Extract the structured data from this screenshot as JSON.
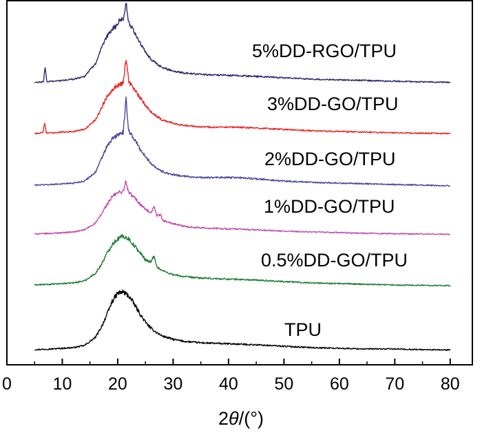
{
  "chart_data": {
    "type": "line",
    "title": "",
    "xlabel_prefix": "2",
    "xlabel_symbol": "θ",
    "xlabel_suffix": "/(°)",
    "ylabel": "",
    "xlim": [
      0,
      84
    ],
    "x_ticks": [
      0,
      10,
      20,
      30,
      40,
      50,
      60,
      70,
      80
    ],
    "x_tick_labels": [
      "0",
      "10",
      "20",
      "30",
      "40",
      "50",
      "60",
      "70",
      "80"
    ],
    "y_axis": "arbitrary intensity, curves offset vertically, no tick labels",
    "series": [
      {
        "name": "TPU",
        "color": "#000000",
        "offset": 0,
        "points": [
          [
            5,
            2
          ],
          [
            8,
            3
          ],
          [
            10,
            4
          ],
          [
            12,
            5
          ],
          [
            14,
            8
          ],
          [
            16,
            20
          ],
          [
            17,
            34
          ],
          [
            18,
            52
          ],
          [
            19,
            72
          ],
          [
            20,
            84
          ],
          [
            21,
            86
          ],
          [
            22,
            80
          ],
          [
            23,
            68
          ],
          [
            24,
            54
          ],
          [
            25,
            42
          ],
          [
            26,
            33
          ],
          [
            27,
            27
          ],
          [
            28,
            22
          ],
          [
            30,
            17
          ],
          [
            32,
            14
          ],
          [
            35,
            12
          ],
          [
            38,
            11
          ],
          [
            42,
            10
          ],
          [
            45,
            9
          ],
          [
            50,
            7
          ],
          [
            55,
            5
          ],
          [
            60,
            4
          ],
          [
            65,
            3
          ],
          [
            70,
            3
          ],
          [
            75,
            2
          ],
          [
            80,
            1.5
          ]
        ]
      },
      {
        "name": "0.5%DD-GO/TPU",
        "color": "#1e7d32",
        "offset": 93,
        "points": [
          [
            5,
            3
          ],
          [
            8,
            4
          ],
          [
            10,
            5
          ],
          [
            12,
            6
          ],
          [
            14,
            9
          ],
          [
            16,
            20
          ],
          [
            17,
            32
          ],
          [
            18,
            48
          ],
          [
            19,
            62
          ],
          [
            20,
            70
          ],
          [
            21,
            74
          ],
          [
            22,
            70
          ],
          [
            23,
            60
          ],
          [
            24,
            50
          ],
          [
            25,
            40
          ],
          [
            26,
            36
          ],
          [
            26.6,
            46
          ],
          [
            27,
            30
          ],
          [
            28,
            24
          ],
          [
            30,
            18
          ],
          [
            32,
            15
          ],
          [
            35,
            13
          ],
          [
            38,
            12
          ],
          [
            42,
            11
          ],
          [
            45,
            10
          ],
          [
            50,
            8
          ],
          [
            55,
            6
          ],
          [
            60,
            5
          ],
          [
            65,
            4
          ],
          [
            70,
            3
          ],
          [
            75,
            2.5
          ],
          [
            80,
            2
          ]
        ]
      },
      {
        "name": "1%DD-GO/TPU",
        "color": "#c24fb0",
        "offset": 168,
        "points": [
          [
            5,
            2
          ],
          [
            8,
            3
          ],
          [
            10,
            4
          ],
          [
            12,
            5
          ],
          [
            14,
            8
          ],
          [
            16,
            18
          ],
          [
            17,
            30
          ],
          [
            18,
            44
          ],
          [
            19,
            56
          ],
          [
            20,
            62
          ],
          [
            21,
            64
          ],
          [
            21.4,
            78
          ],
          [
            22,
            62
          ],
          [
            23,
            55
          ],
          [
            24,
            46
          ],
          [
            25,
            38
          ],
          [
            26,
            32
          ],
          [
            26.6,
            42
          ],
          [
            27,
            28
          ],
          [
            27.8,
            30
          ],
          [
            28,
            22
          ],
          [
            30,
            17
          ],
          [
            32,
            13
          ],
          [
            35,
            11
          ],
          [
            38,
            10
          ],
          [
            42,
            9
          ],
          [
            45,
            8
          ],
          [
            50,
            6
          ],
          [
            55,
            5
          ],
          [
            60,
            4
          ],
          [
            65,
            3
          ],
          [
            70,
            2.5
          ],
          [
            75,
            2
          ],
          [
            80,
            1.5
          ]
        ]
      },
      {
        "name": "2%DD-GO/TPU",
        "color": "#4747a0",
        "offset": 238,
        "points": [
          [
            5,
            3
          ],
          [
            8,
            4
          ],
          [
            10,
            5
          ],
          [
            12,
            6
          ],
          [
            14,
            9
          ],
          [
            16,
            22
          ],
          [
            17,
            40
          ],
          [
            18,
            58
          ],
          [
            19,
            70
          ],
          [
            20,
            76
          ],
          [
            21,
            80
          ],
          [
            21.5,
            126
          ],
          [
            22,
            82
          ],
          [
            23,
            70
          ],
          [
            24,
            56
          ],
          [
            25,
            44
          ],
          [
            26,
            35
          ],
          [
            27,
            28
          ],
          [
            28,
            23
          ],
          [
            30,
            18
          ],
          [
            32,
            16
          ],
          [
            35,
            14
          ],
          [
            38,
            14
          ],
          [
            42,
            14
          ],
          [
            45,
            12
          ],
          [
            50,
            9
          ],
          [
            55,
            7
          ],
          [
            60,
            6
          ],
          [
            65,
            5
          ],
          [
            70,
            4
          ],
          [
            75,
            3
          ],
          [
            80,
            2
          ]
        ]
      },
      {
        "name": "3%DD-GO/TPU",
        "color": "#ee2424",
        "offset": 314,
        "points": [
          [
            5,
            2
          ],
          [
            6.5,
            3
          ],
          [
            6.8,
            18
          ],
          [
            7.1,
            3
          ],
          [
            8,
            3
          ],
          [
            10,
            4
          ],
          [
            12,
            5
          ],
          [
            14,
            8
          ],
          [
            16,
            22
          ],
          [
            17,
            38
          ],
          [
            18,
            55
          ],
          [
            19,
            66
          ],
          [
            20,
            72
          ],
          [
            21,
            76
          ],
          [
            21.5,
            112
          ],
          [
            22,
            78
          ],
          [
            23,
            66
          ],
          [
            24,
            54
          ],
          [
            25,
            43
          ],
          [
            26,
            34
          ],
          [
            27,
            27
          ],
          [
            28,
            22
          ],
          [
            30,
            17
          ],
          [
            32,
            14
          ],
          [
            35,
            12
          ],
          [
            38,
            11
          ],
          [
            42,
            11
          ],
          [
            45,
            10
          ],
          [
            50,
            8
          ],
          [
            55,
            6
          ],
          [
            60,
            5
          ],
          [
            65,
            4
          ],
          [
            70,
            3
          ],
          [
            75,
            2.5
          ],
          [
            80,
            2
          ]
        ]
      },
      {
        "name": "5%DD-RGO/TPU",
        "color": "#2a2a6e",
        "offset": 388,
        "points": [
          [
            5,
            2
          ],
          [
            6.6,
            3
          ],
          [
            6.9,
            26
          ],
          [
            7.2,
            3
          ],
          [
            8,
            4
          ],
          [
            10,
            5
          ],
          [
            12,
            7
          ],
          [
            14,
            11
          ],
          [
            16,
            30
          ],
          [
            17,
            50
          ],
          [
            18,
            68
          ],
          [
            19,
            80
          ],
          [
            20,
            86
          ],
          [
            20.5,
            96
          ],
          [
            21,
            92
          ],
          [
            21.5,
            120
          ],
          [
            22,
            88
          ],
          [
            23,
            76
          ],
          [
            24,
            60
          ],
          [
            25,
            46
          ],
          [
            26,
            36
          ],
          [
            27,
            29
          ],
          [
            28,
            24
          ],
          [
            30,
            19
          ],
          [
            32,
            16
          ],
          [
            35,
            14
          ],
          [
            38,
            13
          ],
          [
            42,
            12
          ],
          [
            45,
            11
          ],
          [
            50,
            9
          ],
          [
            55,
            7
          ],
          [
            60,
            6
          ],
          [
            65,
            5
          ],
          [
            70,
            4
          ],
          [
            75,
            3
          ],
          [
            80,
            2.5
          ]
        ]
      }
    ],
    "labels": [
      {
        "series": "5%DD-RGO/TPU",
        "text": "5%DD-RGO/TPU"
      },
      {
        "series": "3%DD-GO/TPU",
        "text": "3%DD-GO/TPU"
      },
      {
        "series": "2%DD-GO/TPU",
        "text": "2%DD-GO/TPU"
      },
      {
        "series": "1%DD-GO/TPU",
        "text": "1%DD-GO/TPU"
      },
      {
        "series": "0.5%DD-GO/TPU",
        "text": "0.5%DD-GO/TPU"
      },
      {
        "series": "TPU",
        "text": "TPU"
      }
    ]
  }
}
